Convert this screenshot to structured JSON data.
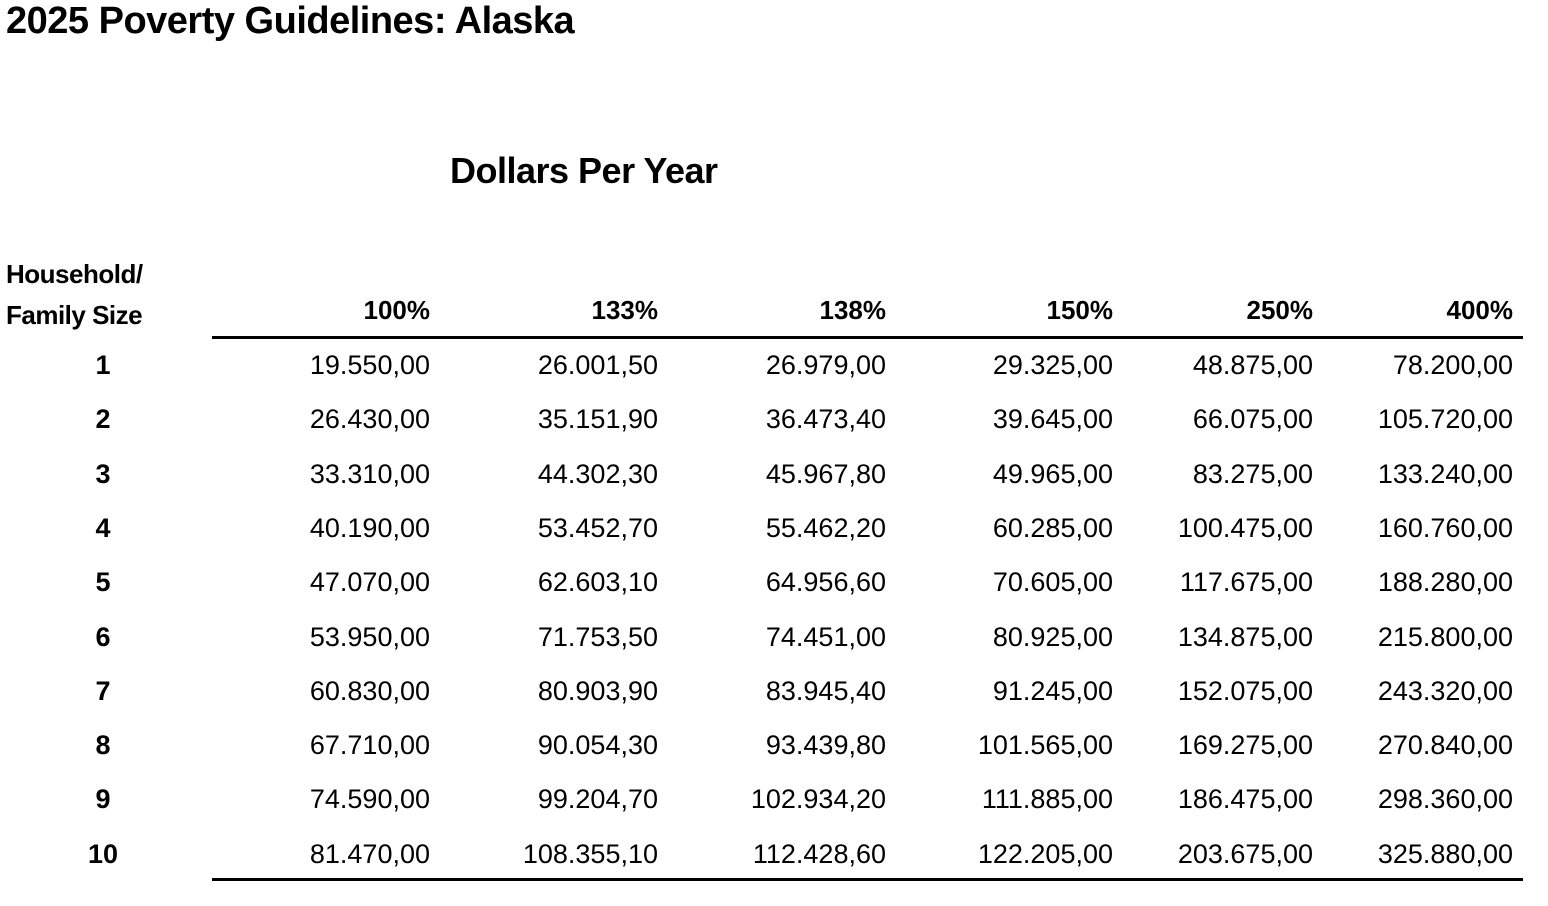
{
  "title": "2025 Poverty Guidelines: Alaska",
  "subtitle": "Dollars Per Year",
  "table": {
    "row_header": [
      "Household/",
      "Family Size"
    ],
    "columns": [
      "100%",
      "133%",
      "138%",
      "150%",
      "250%",
      "400%"
    ],
    "rows": [
      {
        "size": "1",
        "values": [
          "19.550,00",
          "26.001,50",
          "26.979,00",
          "29.325,00",
          "48.875,00",
          "78.200,00"
        ]
      },
      {
        "size": "2",
        "values": [
          "26.430,00",
          "35.151,90",
          "36.473,40",
          "39.645,00",
          "66.075,00",
          "105.720,00"
        ]
      },
      {
        "size": "3",
        "values": [
          "33.310,00",
          "44.302,30",
          "45.967,80",
          "49.965,00",
          "83.275,00",
          "133.240,00"
        ]
      },
      {
        "size": "4",
        "values": [
          "40.190,00",
          "53.452,70",
          "55.462,20",
          "60.285,00",
          "100.475,00",
          "160.760,00"
        ]
      },
      {
        "size": "5",
        "values": [
          "47.070,00",
          "62.603,10",
          "64.956,60",
          "70.605,00",
          "117.675,00",
          "188.280,00"
        ]
      },
      {
        "size": "6",
        "values": [
          "53.950,00",
          "71.753,50",
          "74.451,00",
          "80.925,00",
          "134.875,00",
          "215.800,00"
        ]
      },
      {
        "size": "7",
        "values": [
          "60.830,00",
          "80.903,90",
          "83.945,40",
          "91.245,00",
          "152.075,00",
          "243.320,00"
        ]
      },
      {
        "size": "8",
        "values": [
          "67.710,00",
          "90.054,30",
          "93.439,80",
          "101.565,00",
          "169.275,00",
          "270.840,00"
        ]
      },
      {
        "size": "9",
        "values": [
          "74.590,00",
          "99.204,70",
          "102.934,20",
          "111.885,00",
          "186.475,00",
          "298.360,00"
        ]
      },
      {
        "size": "10",
        "values": [
          "81.470,00",
          "108.355,10",
          "112.428,60",
          "122.205,00",
          "203.675,00",
          "325.880,00"
        ]
      }
    ]
  }
}
